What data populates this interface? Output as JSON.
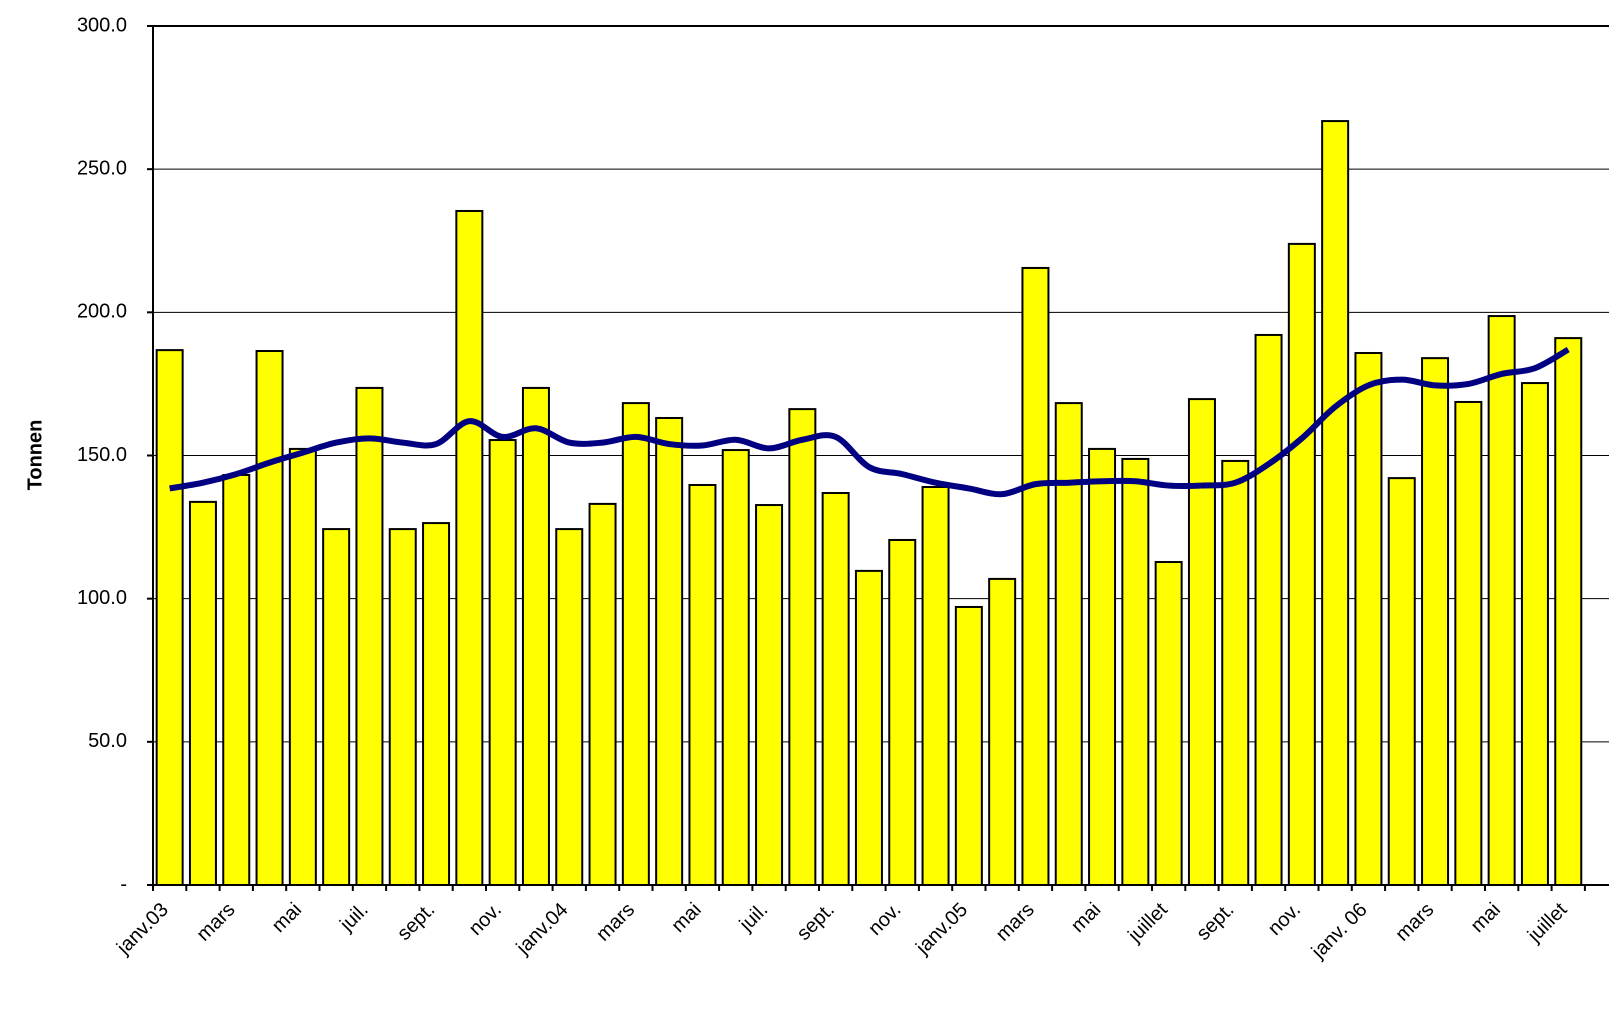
{
  "chart_data": {
    "type": "bar",
    "y_label": "Tonnen",
    "categories": [
      "janv.03",
      null,
      "mars",
      null,
      "mai",
      null,
      "juil.",
      null,
      "sept.",
      null,
      "nov.",
      null,
      "janv.04",
      null,
      "mars",
      null,
      "mai",
      null,
      "juil.",
      null,
      "sept.",
      null,
      "nov.",
      null,
      "janv.05",
      null,
      "mars",
      null,
      "mai",
      null,
      "juillet",
      null,
      "sept.",
      null,
      "nov.",
      null,
      "janv. 06",
      null,
      "mars",
      null,
      "mai",
      null,
      "juillet"
    ],
    "series": [
      {
        "type": "bar",
        "color": "#ffff00",
        "values": [
          186.8,
          133.8,
          143.2,
          186.5,
          152.3,
          124.3,
          173.6,
          124.3,
          126.4,
          235.4,
          155.4,
          173.6,
          124.3,
          133.1,
          168.3,
          163.1,
          139.7,
          151.9,
          132.7,
          166.2,
          136.9,
          109.7,
          120.5,
          139.0,
          97.1,
          106.9,
          215.5,
          168.3,
          152.3,
          148.8,
          112.8,
          169.7,
          148.1,
          192.1,
          223.9,
          266.8,
          185.8,
          142.1,
          184.0,
          168.7,
          198.7,
          175.3,
          191.0
        ]
      },
      {
        "type": "line",
        "color": "#000080",
        "values": [
          138.5,
          140.5,
          143.5,
          147.5,
          151,
          154.5,
          156,
          154.5,
          154,
          162,
          156.5,
          159.5,
          154.5,
          154.5,
          156.5,
          154,
          153.5,
          155.5,
          152.5,
          155.5,
          156.5,
          146,
          143.5,
          140.5,
          138.5,
          136.5,
          140,
          140.5,
          141,
          141,
          139.5,
          139.5,
          140.5,
          147,
          156,
          167,
          174.5,
          176.5,
          174.5,
          175,
          178.5,
          180.5,
          187
        ]
      }
    ],
    "ylim": [
      0,
      300
    ],
    "yticks": [
      {
        "value": 0,
        "label": "-"
      },
      {
        "value": 50,
        "label": "50.0"
      },
      {
        "value": 100,
        "label": "100.0"
      },
      {
        "value": 150,
        "label": "150.0"
      },
      {
        "value": 200,
        "label": "200.0"
      },
      {
        "value": 250,
        "label": "250.0"
      },
      {
        "value": 300,
        "label": "300.0"
      }
    ],
    "grid": true
  }
}
